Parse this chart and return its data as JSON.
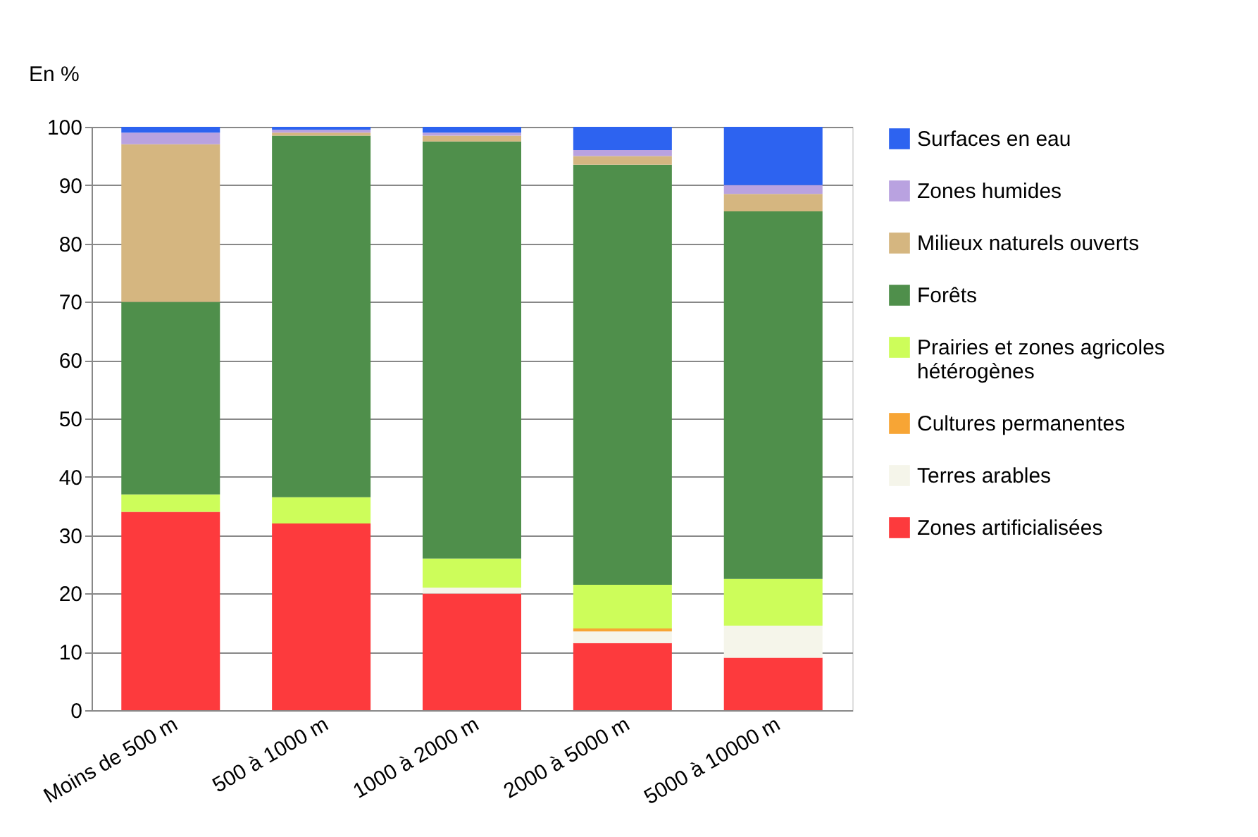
{
  "chart_data": {
    "type": "bar",
    "stacked": true,
    "ylabel": "En %",
    "categories": [
      "Moins de 500 m",
      "500 à 1000 m",
      "1000 à 2000 m",
      "2000 à 5000 m",
      "5000 à 10000 m"
    ],
    "series": [
      {
        "name": "Zones artificialisées",
        "color": "#fd3a3d",
        "values": [
          34,
          32,
          20,
          11.5,
          9
        ]
      },
      {
        "name": "Terres arables",
        "color": "#f5f5ea",
        "values": [
          0,
          0,
          1,
          2,
          5.5
        ]
      },
      {
        "name": "Cultures permanentes",
        "color": "#f7a535",
        "values": [
          0,
          0,
          0,
          0.5,
          0
        ]
      },
      {
        "name": "Prairies et zones agricoles hétérogènes",
        "color": "#cdfd5a",
        "values": [
          3,
          4.5,
          5,
          7.5,
          8
        ]
      },
      {
        "name": "Forêts",
        "color": "#4f8f4b",
        "values": [
          33,
          62,
          71.5,
          72,
          63
        ]
      },
      {
        "name": "Milieux naturels ouverts",
        "color": "#d5b680",
        "values": [
          27,
          0.5,
          1,
          1.5,
          3
        ]
      },
      {
        "name": "Zones humides",
        "color": "#b9a2e0",
        "values": [
          2,
          0.5,
          0.5,
          1,
          1.5
        ]
      },
      {
        "name": "Surfaces en eau",
        "color": "#2d63f0",
        "values": [
          1,
          0.5,
          1,
          4,
          10
        ]
      }
    ],
    "ylim": [
      0,
      100
    ],
    "yticks": [
      0,
      10,
      20,
      30,
      40,
      50,
      60,
      70,
      80,
      90,
      100
    ],
    "grid": "y",
    "legend": "right"
  }
}
